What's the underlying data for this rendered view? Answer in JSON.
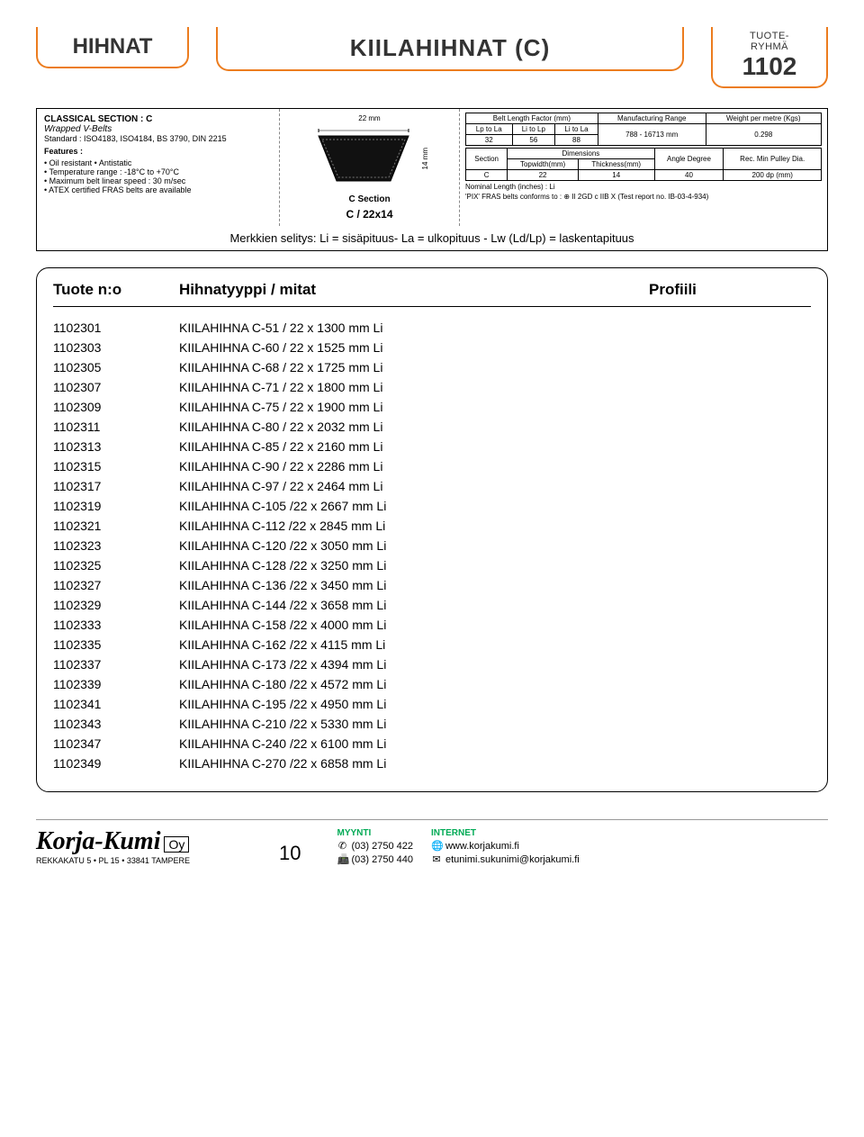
{
  "header": {
    "left": "HIHNAT",
    "mid": "KIILAHIHNAT (C)",
    "right_small": "TUOTE-\nRYHMÄ",
    "right_big": "1102"
  },
  "spec_left": {
    "title": "CLASSICAL SECTION : C",
    "sub1": "Wrapped V-Belts",
    "sub2": "Standard : ISO4183, ISO4184, BS 3790, DIN 2215",
    "features_label": "Features :",
    "features": [
      "Oil resistant • Antistatic",
      "Temperature range : -18°C to +70°C",
      "Maximum belt linear speed : 30 m/sec",
      "ATEX certified FRAS belts are available"
    ]
  },
  "spec_mid": {
    "top_dim": "22 mm",
    "side_dim": "14 mm",
    "label": "C Section",
    "code": "C / 22x14"
  },
  "spec_right": {
    "t1": {
      "h": [
        "Belt Length Factor (mm)",
        "Manufacturing Range",
        "Weight per metre (Kgs)"
      ],
      "r1": [
        "Lp to La",
        "Li to Lp",
        "Li to La",
        "788 - 16713 mm",
        "0.298"
      ],
      "r2": [
        "32",
        "56",
        "88"
      ]
    },
    "t2": {
      "h": [
        "Section",
        "Dimensions",
        "Angle Degree",
        "Rec. Min Pulley Dia."
      ],
      "sub": [
        "Topwidth(mm)",
        "Thickness(mm)"
      ],
      "r": [
        "C",
        "22",
        "14",
        "40",
        "200 dp (mm)"
      ]
    },
    "note1": "Nominal Length (inches) : Li",
    "note2": "'PIX' FRAS belts conforms to : ⊕ II 2GD c IIB X (Test report no. IB-03-4-934)"
  },
  "merk": "Merkkien selitys: Li = sisäpituus- La = ulkopituus - Lw (Ld/Lp) = laskentapituus",
  "products_header": {
    "a": "Tuote n:o",
    "b": "Hihnatyyppi / mitat",
    "c": "Profiili"
  },
  "products": [
    {
      "n": "1102301",
      "d": "KIILAHIHNA C-51 / 22 x 1300 mm Li"
    },
    {
      "n": "1102303",
      "d": "KIILAHIHNA C-60 / 22 x 1525 mm Li"
    },
    {
      "n": "1102305",
      "d": "KIILAHIHNA C-68 / 22 x 1725 mm Li"
    },
    {
      "n": "1102307",
      "d": "KIILAHIHNA C-71 / 22 x 1800 mm Li"
    },
    {
      "n": "1102309",
      "d": "KIILAHIHNA C-75 / 22 x 1900 mm Li"
    },
    {
      "n": "1102311",
      "d": "KIILAHIHNA C-80 / 22 x 2032 mm Li"
    },
    {
      "n": "1102313",
      "d": "KIILAHIHNA C-85 / 22 x 2160 mm Li"
    },
    {
      "n": "1102315",
      "d": "KIILAHIHNA C-90 / 22 x 2286 mm Li"
    },
    {
      "n": "1102317",
      "d": "KIILAHIHNA C-97 / 22 x 2464 mm Li"
    },
    {
      "n": "1102319",
      "d": "KIILAHIHNA C-105 /22 x 2667 mm Li"
    },
    {
      "n": "1102321",
      "d": "KIILAHIHNA C-112 /22 x 2845 mm Li"
    },
    {
      "n": "1102323",
      "d": "KIILAHIHNA C-120 /22 x 3050 mm Li"
    },
    {
      "n": "1102325",
      "d": "KIILAHIHNA C-128 /22 x 3250 mm Li"
    },
    {
      "n": "1102327",
      "d": "KIILAHIHNA C-136 /22 x 3450 mm Li"
    },
    {
      "n": "1102329",
      "d": "KIILAHIHNA C-144 /22 x 3658 mm Li"
    },
    {
      "n": "1102333",
      "d": "KIILAHIHNA C-158 /22 x 4000 mm Li"
    },
    {
      "n": "1102335",
      "d": "KIILAHIHNA C-162 /22 x 4115 mm Li"
    },
    {
      "n": "1102337",
      "d": "KIILAHIHNA C-173 /22 x 4394 mm Li"
    },
    {
      "n": "1102339",
      "d": "KIILAHIHNA C-180 /22 x 4572 mm Li"
    },
    {
      "n": "1102341",
      "d": "KIILAHIHNA C-195 /22 x 4950 mm Li"
    },
    {
      "n": "1102343",
      "d": "KIILAHIHNA C-210 /22 x 5330 mm Li"
    },
    {
      "n": "1102347",
      "d": "KIILAHIHNA C-240 /22 x 6100 mm Li"
    },
    {
      "n": "1102349",
      "d": "KIILAHIHNA C-270 /22 x 6858 mm Li"
    }
  ],
  "footer": {
    "brand": "Korja-Kumi",
    "oy": "Oy",
    "addr": "REKKAKATU 5 • PL 15 • 33841 TAMPERE",
    "page": "10",
    "myynti_label": "MYYNTI",
    "phone": "(03) 2750 422",
    "fax": "(03) 2750 440",
    "internet_label": "INTERNET",
    "url": "www.korjakumi.fi",
    "email": "etunimi.sukunimi@korjakumi.fi"
  },
  "colors": {
    "accent": "#ec7c1e",
    "text": "#000000",
    "green": "#0a7a3a"
  }
}
